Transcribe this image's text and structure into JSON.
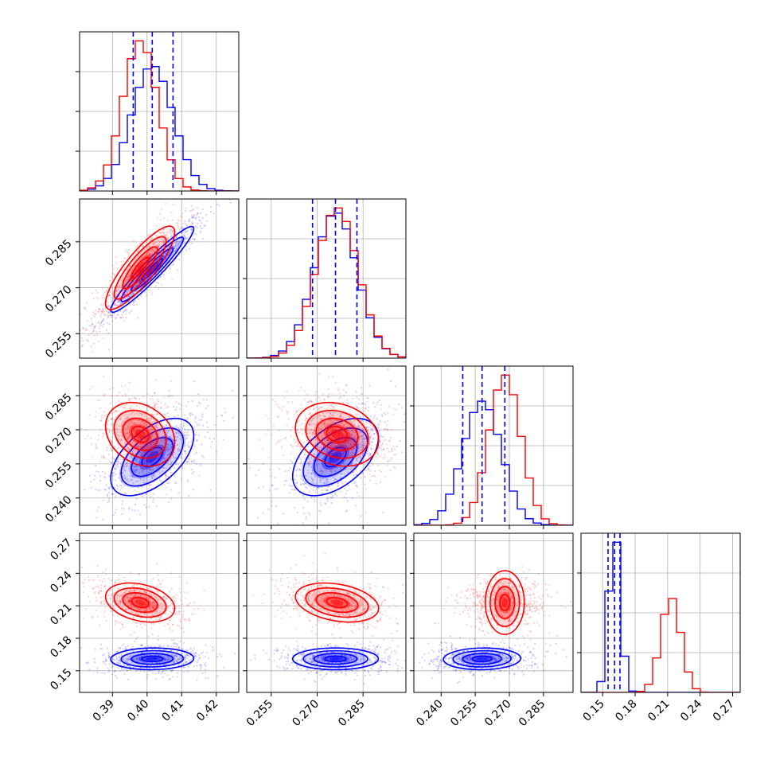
{
  "chart_data": {
    "type": "corner",
    "grid": true,
    "parameters": [
      {
        "range": [
          0.3805,
          0.4265
        ],
        "ticks": [
          0.39,
          0.4,
          0.41,
          0.42
        ],
        "tick_labels": [
          "0.39",
          "0.40",
          "0.41",
          "0.42"
        ]
      },
      {
        "range": [
          0.247,
          0.299
        ],
        "ticks": [
          0.255,
          0.27,
          0.285
        ],
        "tick_labels": [
          "0.255",
          "0.270",
          "0.285"
        ]
      },
      {
        "range": [
          0.228,
          0.298
        ],
        "ticks": [
          0.24,
          0.255,
          0.27,
          0.285
        ],
        "tick_labels": [
          "0.240",
          "0.255",
          "0.270",
          "0.285"
        ]
      },
      {
        "range": [
          0.13,
          0.277
        ],
        "ticks": [
          0.15,
          0.18,
          0.21,
          0.24,
          0.27
        ],
        "tick_labels": [
          "0.15",
          "0.18",
          "0.21",
          "0.24",
          "0.27"
        ]
      }
    ],
    "series": [
      {
        "color": "#0000ff",
        "means": [
          0.4015,
          0.276,
          0.258,
          0.161
        ],
        "stds": [
          0.006,
          0.007,
          0.0085,
          0.005
        ],
        "correlations": [
          [
            1,
            0.95,
            0.55,
            0.05
          ],
          [
            0.95,
            1,
            0.5,
            0.0
          ],
          [
            0.55,
            0.5,
            1,
            0.05
          ],
          [
            0.05,
            0.0,
            0.05,
            1
          ]
        ],
        "quantile_lines": [
          [
            0.396,
            0.4015,
            0.4075
          ],
          [
            0.2685,
            0.276,
            0.283
          ],
          [
            0.2495,
            0.258,
            0.268
          ],
          [
            0.155,
            0.161,
            0.166
          ]
        ]
      },
      {
        "color": "#ff0000",
        "means": [
          0.398,
          0.2765,
          0.268,
          0.213
        ],
        "stds": [
          0.005,
          0.0068,
          0.007,
          0.009
        ],
        "correlations": [
          [
            1,
            0.85,
            -0.25,
            -0.3
          ],
          [
            0.85,
            1,
            -0.2,
            -0.3
          ],
          [
            -0.25,
            -0.2,
            1,
            0.0
          ],
          [
            -0.3,
            -0.3,
            0.0,
            1
          ]
        ]
      }
    ]
  }
}
